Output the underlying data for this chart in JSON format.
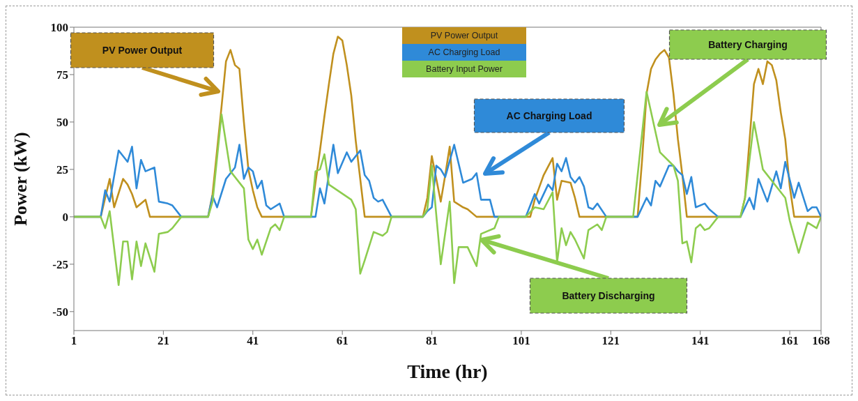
{
  "chart_data": {
    "type": "line",
    "xlabel": "Time (hr)",
    "ylabel": "Power (kW)",
    "xlim": [
      1,
      168
    ],
    "xticks": [
      1,
      21,
      41,
      61,
      81,
      101,
      121,
      141,
      161,
      168
    ],
    "ylim": [
      -60,
      100
    ],
    "yticks": [
      -50,
      -25,
      0,
      25,
      50,
      75,
      100
    ],
    "legend": "top",
    "line_style": "solid",
    "series": [
      {
        "name": "PV Power Output",
        "color": "#c0901e",
        "x": [
          1,
          7,
          8,
          9,
          10,
          12,
          13,
          14,
          15,
          17,
          18,
          31,
          32,
          33,
          34,
          35,
          36,
          37,
          38,
          39,
          40,
          41,
          42,
          43,
          54,
          55,
          56,
          57,
          58,
          59,
          60,
          61,
          62,
          63,
          64,
          65,
          66,
          79,
          80,
          81,
          83,
          84,
          85,
          86,
          88,
          89,
          91,
          103,
          104,
          106,
          108,
          109,
          110,
          112,
          113,
          114,
          127,
          128,
          129,
          130,
          131,
          132,
          133,
          134,
          135,
          136,
          137,
          138,
          150,
          151,
          152,
          153,
          154,
          155,
          156,
          157,
          158,
          159,
          160,
          161,
          162,
          168
        ],
        "values": [
          0,
          0,
          10,
          20,
          5,
          20,
          17,
          12,
          5,
          9,
          0,
          0,
          12,
          35,
          58,
          82,
          88,
          80,
          78,
          50,
          25,
          14,
          5,
          0,
          0,
          18,
          35,
          53,
          70,
          86,
          95,
          93,
          80,
          64,
          40,
          20,
          0,
          0,
          10,
          32,
          8,
          22,
          37,
          8,
          5,
          4,
          0,
          0,
          9,
          22,
          31,
          9,
          19,
          18,
          10,
          0,
          0,
          30,
          65,
          78,
          83,
          86,
          88,
          84,
          65,
          41,
          22,
          0,
          0,
          10,
          40,
          70,
          78,
          70,
          82,
          80,
          72,
          55,
          41,
          16,
          0,
          0
        ]
      },
      {
        "name": "AC Charging Load",
        "color": "#2f8ad8",
        "x": [
          1,
          7,
          8,
          9,
          11,
          13,
          14,
          15,
          16,
          17,
          19,
          20,
          22,
          23,
          25,
          31,
          32,
          33,
          35,
          37,
          38,
          39,
          40,
          41,
          42,
          43,
          44,
          45,
          47,
          48,
          55,
          56,
          57,
          59,
          60,
          62,
          63,
          65,
          66,
          67,
          68,
          69,
          70,
          72,
          79,
          80,
          81,
          82,
          83,
          84,
          86,
          87,
          88,
          90,
          91,
          92,
          94,
          95,
          102,
          104,
          105,
          107,
          108,
          109,
          110,
          111,
          112,
          113,
          114,
          115,
          116,
          117,
          118,
          120,
          127,
          129,
          130,
          131,
          132,
          134,
          135,
          136,
          137,
          138,
          139,
          140,
          142,
          143,
          145,
          150,
          152,
          153,
          154,
          156,
          158,
          159,
          160,
          162,
          163,
          165,
          166,
          167,
          168
        ],
        "values": [
          0,
          0,
          14,
          8,
          35,
          29,
          37,
          15,
          30,
          24,
          26,
          8,
          7,
          6,
          0,
          0,
          11,
          5,
          20,
          26,
          38,
          20,
          26,
          24,
          15,
          19,
          6,
          4,
          7,
          0,
          0,
          15,
          7,
          38,
          23,
          34,
          29,
          35,
          22,
          19,
          10,
          8,
          9,
          0,
          0,
          3,
          5,
          27,
          25,
          21,
          38,
          28,
          18,
          20,
          23,
          9,
          9,
          0,
          0,
          12,
          7,
          17,
          14,
          28,
          24,
          31,
          21,
          18,
          21,
          16,
          5,
          4,
          7,
          0,
          0,
          10,
          6,
          19,
          16,
          27,
          27,
          24,
          22,
          12,
          21,
          5,
          7,
          4,
          0,
          0,
          10,
          4,
          20,
          8,
          24,
          15,
          29,
          10,
          18,
          3,
          5,
          5,
          0
        ]
      },
      {
        "name": "Battery Input Power",
        "color": "#8dcc4e",
        "x": [
          1,
          7,
          8,
          9,
          11,
          12,
          13,
          14,
          15,
          16,
          17,
          19,
          20,
          22,
          23,
          25,
          31,
          32,
          34,
          36,
          39,
          40,
          41,
          42,
          43,
          45,
          46,
          47,
          48,
          54,
          55,
          56,
          57,
          58,
          63,
          64,
          65,
          66,
          68,
          70,
          71,
          72,
          79,
          80,
          81,
          83,
          85,
          86,
          87,
          89,
          91,
          92,
          95,
          96,
          102,
          104,
          106,
          108,
          109,
          110,
          111,
          112,
          113,
          115,
          116,
          118,
          119,
          120,
          126,
          129,
          132,
          135,
          136,
          137,
          138,
          139,
          140,
          141,
          142,
          143,
          145,
          150,
          151,
          153,
          155,
          160,
          161,
          163,
          165,
          167,
          168
        ],
        "values": [
          0,
          0,
          -6,
          3,
          -36,
          -13,
          -13,
          -33,
          -13,
          -26,
          -14,
          -29,
          -9,
          -8,
          -6,
          0,
          0,
          8,
          54,
          24,
          15,
          -12,
          -17,
          -12,
          -20,
          -6,
          -4,
          -7,
          0,
          0,
          24,
          25,
          33,
          17,
          9,
          4,
          -30,
          -23,
          -8,
          -10,
          -8,
          0,
          0,
          4,
          27,
          -25,
          8,
          -35,
          -16,
          -16,
          -26,
          -9,
          -6,
          0,
          0,
          5,
          4,
          13,
          -24,
          -6,
          -15,
          -8,
          -12,
          -22,
          -7,
          -4,
          -7,
          0,
          0,
          66,
          34,
          27,
          19,
          -14,
          -13,
          -24,
          -6,
          -4,
          -7,
          -6,
          0,
          0,
          10,
          50,
          25,
          10,
          -2,
          -19,
          -3,
          -6,
          0
        ]
      }
    ],
    "annotations": [
      "PV Power Output",
      "AC Charging Load",
      "Battery Charging",
      "Battery Discharging"
    ]
  }
}
